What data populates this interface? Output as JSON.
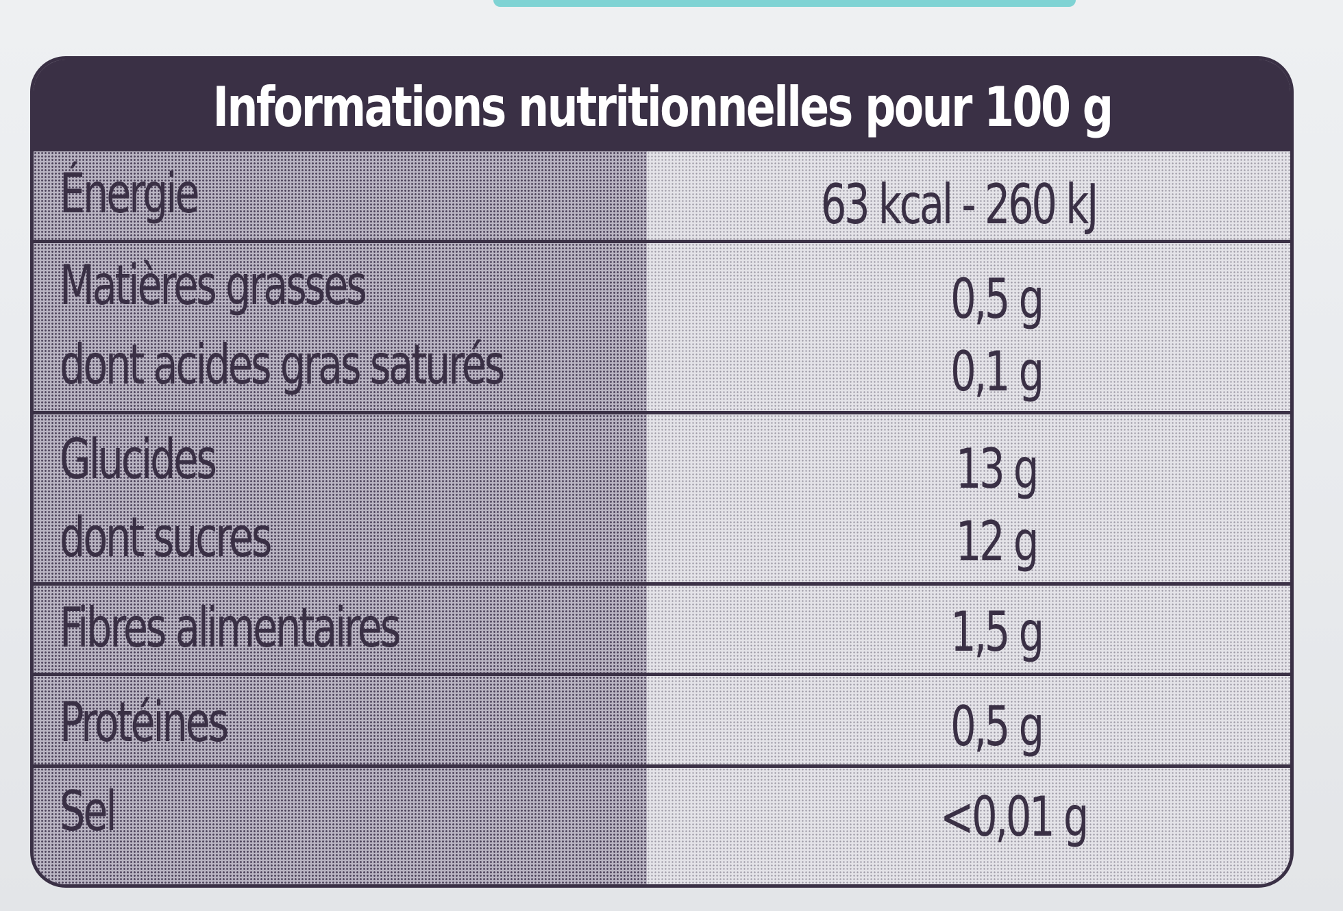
{
  "title": "Informations nutritionnelles pour 100 g",
  "rows": [
    {
      "label": "Énergie",
      "value": "63 kcal - 260 kJ"
    },
    {
      "label": "Matières grasses",
      "value": "0,5 g"
    },
    {
      "label": "dont acides gras saturés",
      "value": "0,1 g"
    },
    {
      "label": "Glucides",
      "value": "13 g"
    },
    {
      "label": "dont sucres",
      "value": "12 g"
    },
    {
      "label": "Fibres alimentaires",
      "value": "1,5 g"
    },
    {
      "label": "Protéines",
      "value": "0,5 g"
    },
    {
      "label": "Sel",
      "value": "<0,01 g"
    }
  ],
  "colors": {
    "frame": "#3a3045",
    "header_text": "#ffffff",
    "accent_strip": "#7fd3d4"
  }
}
